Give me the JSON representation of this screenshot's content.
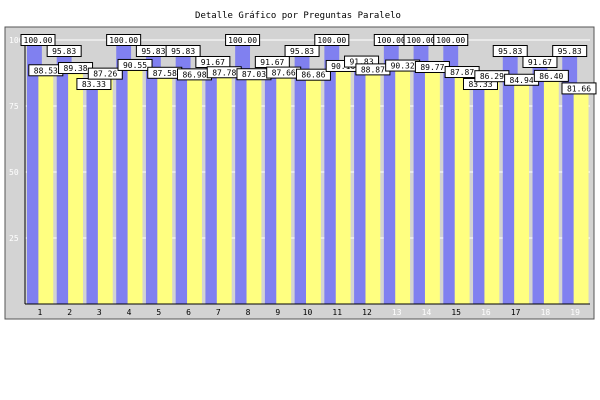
{
  "chart_data": {
    "type": "bar",
    "title": "Detalle Gráfico por Preguntas Paralelo",
    "xlabel": "",
    "ylabel": "",
    "ylim": [
      0,
      100
    ],
    "yticks": [
      25,
      50,
      75,
      100
    ],
    "grid": true,
    "legend": "none",
    "categories": [
      "1",
      "2",
      "3",
      "4",
      "5",
      "6",
      "7",
      "8",
      "9",
      "10",
      "11",
      "12",
      "13",
      "14",
      "15",
      "16",
      "17",
      "18",
      "19"
    ],
    "series": [
      {
        "color": "#8080f0",
        "values": [
          100.0,
          95.83,
          83.33,
          100.0,
          95.83,
          95.83,
          91.67,
          100.0,
          91.67,
          95.83,
          100.0,
          91.83,
          100.0,
          100.0,
          100.0,
          83.33,
          95.83,
          91.67,
          95.83
        ]
      },
      {
        "color": "#ffff80",
        "values": [
          88.53,
          89.38,
          87.26,
          90.55,
          87.58,
          86.98,
          87.78,
          87.03,
          87.66,
          86.86,
          90.16,
          88.87,
          90.32,
          89.77,
          87.87,
          86.29,
          84.94,
          86.4,
          81.66
        ]
      }
    ],
    "category_label_colors": [
      "#000",
      "#000",
      "#000",
      "#000",
      "#000",
      "#000",
      "#000",
      "#000",
      "#000",
      "#000",
      "#000",
      "#000",
      "#ffffff",
      "#ffffff",
      "#000",
      "#ffffff",
      "#000",
      "#ffffff",
      "#ffffff"
    ]
  }
}
